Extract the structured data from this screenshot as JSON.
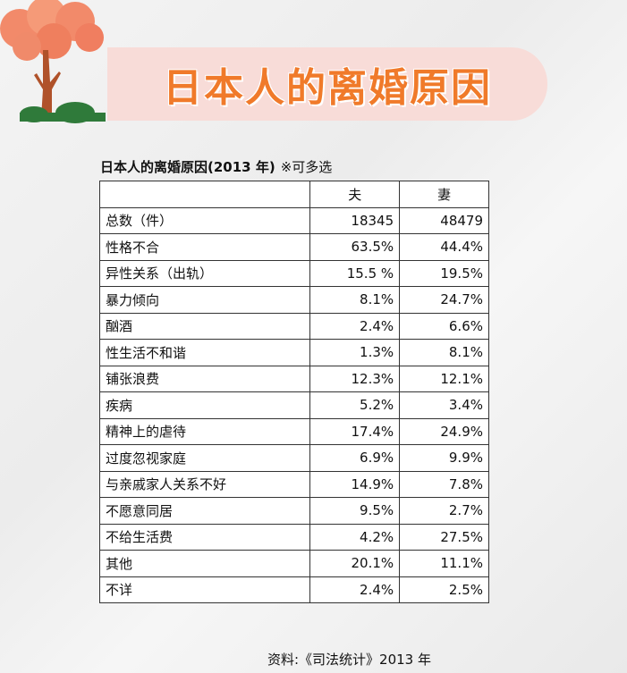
{
  "title": "日本人的离婚原因",
  "caption": "日本人的离婚原因(2013 年)",
  "caption_note": "※可多选",
  "table": {
    "header_blank": "",
    "headers": [
      "夫",
      "妻"
    ],
    "rows": [
      {
        "label": "总数（件）",
        "husband": "18345",
        "wife": "48479"
      },
      {
        "label": "性格不合",
        "husband": "63.5%",
        "wife": "44.4%"
      },
      {
        "label": "异性关系（出轨）",
        "husband": "15.5 %",
        "wife": "19.5%"
      },
      {
        "label": "暴力倾向",
        "husband": "8.1%",
        "wife": "24.7%"
      },
      {
        "label": "酗酒",
        "husband": "2.4%",
        "wife": "6.6%"
      },
      {
        "label": "性生活不和谐",
        "husband": "1.3%",
        "wife": "8.1%"
      },
      {
        "label": "铺张浪费",
        "husband": "12.3%",
        "wife": "12.1%"
      },
      {
        "label": "疾病",
        "husband": "5.2%",
        "wife": "3.4%"
      },
      {
        "label": "精神上的虐待",
        "husband": "17.4%",
        "wife": "24.9%"
      },
      {
        "label": "过度忽视家庭",
        "husband": "6.9%",
        "wife": "9.9%"
      },
      {
        "label": "与亲戚家人关系不好",
        "husband": "14.9%",
        "wife": "7.8%"
      },
      {
        "label": "不愿意同居",
        "husband": "9.5%",
        "wife": "2.7%"
      },
      {
        "label": "不给生活费",
        "husband": "4.2%",
        "wife": "27.5%"
      },
      {
        "label": "其他",
        "husband": "20.1%",
        "wife": "11.1%"
      },
      {
        "label": "不详",
        "husband": "2.4%",
        "wife": "2.5%"
      }
    ]
  },
  "source": "资料:《司法统计》2013 年",
  "colors": {
    "title_text": "#f07a2a",
    "banner_bg": "#f8dcd8",
    "tree_foliage": "#f28a6a",
    "tree_trunk": "#b0522a",
    "bush": "#2f7a3a"
  }
}
